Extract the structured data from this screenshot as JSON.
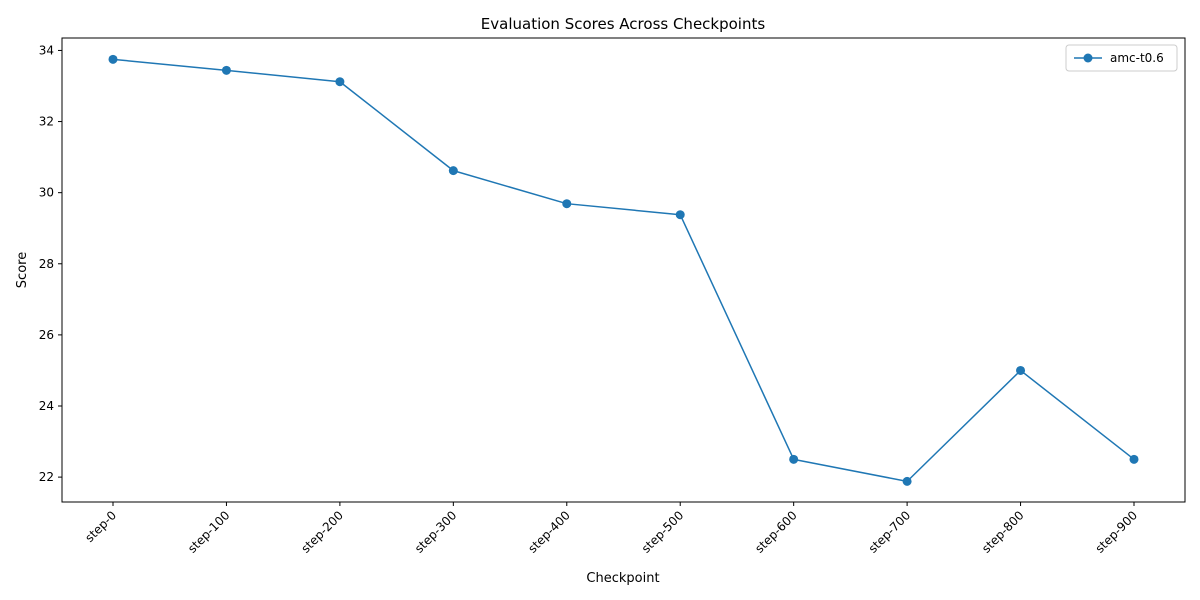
{
  "chart_data": {
    "type": "line",
    "title": "Evaluation Scores Across Checkpoints",
    "xlabel": "Checkpoint",
    "ylabel": "Score",
    "categories": [
      "step-0",
      "step-100",
      "step-200",
      "step-300",
      "step-400",
      "step-500",
      "step-600",
      "step-700",
      "step-800",
      "step-900"
    ],
    "series": [
      {
        "name": "amc-t0.6",
        "color": "#1f77b4",
        "marker": "circle",
        "values": [
          33.75,
          33.44,
          33.12,
          30.62,
          29.69,
          29.38,
          22.5,
          21.88,
          25.0,
          22.5
        ]
      }
    ],
    "ylim": [
      21.3,
      34.35
    ],
    "yticks": [
      22,
      24,
      26,
      28,
      30,
      32,
      34
    ],
    "x_tick_rotation_deg": 45,
    "grid": false,
    "legend_position": "top-right"
  }
}
